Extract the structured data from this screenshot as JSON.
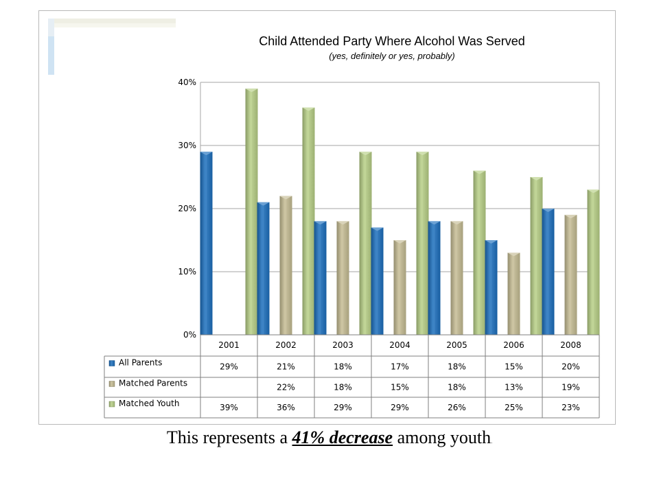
{
  "colors": {
    "all_parents": "#1c6fbd",
    "matched_parents": "#c5bc93",
    "matched_youth": "#b7cf86"
  },
  "chart_data": {
    "type": "bar",
    "title": "Child Attended  Party Where Alcohol Was Served",
    "subtitle": "(yes, definitely or yes, probably)",
    "categories": [
      "2001",
      "2002",
      "2003",
      "2004",
      "2005",
      "2006",
      "2008"
    ],
    "series": [
      {
        "name": "All Parents",
        "values": [
          29,
          21,
          18,
          17,
          18,
          15,
          20
        ],
        "labels": [
          "29%",
          "21%",
          "18%",
          "17%",
          "18%",
          "15%",
          "20%"
        ]
      },
      {
        "name": "Matched Parents",
        "values": [
          null,
          22,
          18,
          15,
          18,
          13,
          19
        ],
        "labels": [
          "",
          "22%",
          "18%",
          "15%",
          "18%",
          "13%",
          "19%"
        ]
      },
      {
        "name": "Matched Youth",
        "values": [
          39,
          36,
          29,
          29,
          26,
          25,
          23
        ],
        "labels": [
          "39%",
          "36%",
          "29%",
          "29%",
          "26%",
          "25%",
          "23%"
        ]
      }
    ],
    "yticks": [
      "0%",
      "10%",
      "20%",
      "30%",
      "40%"
    ],
    "ylim": [
      0,
      40
    ],
    "grid": true,
    "legend": "data-table"
  },
  "caption": {
    "before": "This represents a ",
    "emphasis": "41% decrease",
    "after": " among youth",
    "end": "."
  }
}
